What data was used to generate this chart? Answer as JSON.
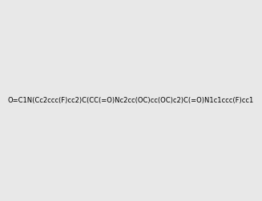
{
  "smiles": "O=C1N(Cc2ccc(F)cc2)C(CC(=O)Nc2cc(OC)cc(OC)c2)C(=O)N1c1ccc(F)cc1",
  "image_size": 300,
  "background_color": "#e8e8e8"
}
